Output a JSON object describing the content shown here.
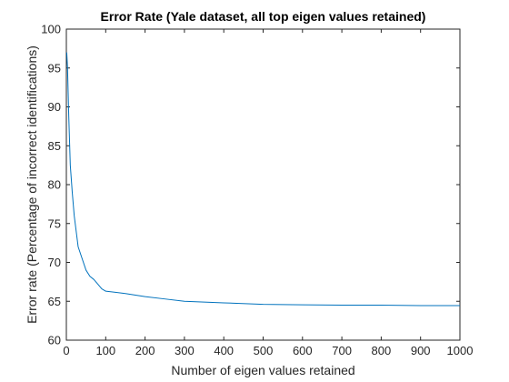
{
  "chart_data": {
    "type": "line",
    "title": "Error Rate (Yale dataset, all top eigen values retained)",
    "xlabel": "Number of eigen values retained",
    "ylabel": "Error rate (Percentage of incorrect identifications)",
    "xlim": [
      0,
      1000
    ],
    "ylim": [
      60,
      100
    ],
    "x_ticks": [
      0,
      100,
      200,
      300,
      400,
      500,
      600,
      700,
      800,
      900,
      1000
    ],
    "y_ticks": [
      60,
      65,
      70,
      75,
      80,
      85,
      90,
      95,
      100
    ],
    "grid": false,
    "series": [
      {
        "color": "#0072BD",
        "x": [
          1,
          3,
          6,
          10,
          15,
          20,
          30,
          40,
          50,
          60,
          70,
          80,
          90,
          100,
          150,
          200,
          250,
          300,
          400,
          500,
          600,
          700,
          800,
          900,
          1000
        ],
        "y": [
          97,
          95,
          89,
          82.5,
          79,
          76,
          72,
          70.5,
          69,
          68.2,
          67.8,
          67.2,
          66.6,
          66.3,
          66,
          65.6,
          65.3,
          65,
          64.8,
          64.6,
          64.55,
          64.5,
          64.5,
          64.45,
          64.45
        ]
      }
    ]
  }
}
